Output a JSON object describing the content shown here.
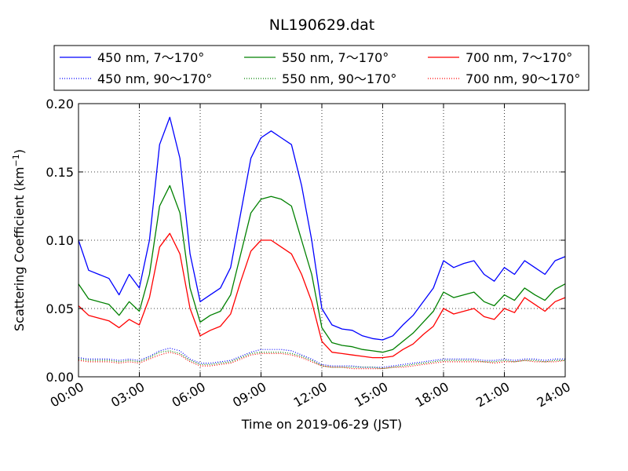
{
  "chart_data": {
    "type": "line",
    "title": "NL190629.dat",
    "xlabel": "Time on 2019-06-29 (JST)",
    "ylabel": "Scattering Coefficient (km",
    "ylabel_sup": "−1",
    "ylabel_close": ")",
    "xlim": [
      0,
      24
    ],
    "ylim": [
      0,
      0.2
    ],
    "grid": true,
    "legend_position": "top",
    "x_tick_labels": [
      "00:00",
      "03:00",
      "06:00",
      "09:00",
      "12:00",
      "15:00",
      "18:00",
      "21:00",
      "24:00"
    ],
    "x_tick_values": [
      0,
      3,
      6,
      9,
      12,
      15,
      18,
      21,
      24
    ],
    "y_tick_labels": [
      "0.00",
      "0.05",
      "0.10",
      "0.15",
      "0.20"
    ],
    "y_tick_values": [
      0,
      0.05,
      0.1,
      0.15,
      0.2
    ],
    "x": [
      0,
      0.5,
      1,
      1.5,
      2,
      2.5,
      3,
      3.5,
      4,
      4.5,
      5,
      5.5,
      6,
      6.5,
      7,
      7.5,
      8,
      8.5,
      9,
      9.5,
      10,
      10.5,
      11,
      11.5,
      12,
      12.5,
      13,
      13.5,
      14,
      14.5,
      15,
      15.5,
      16,
      16.5,
      17,
      17.5,
      18,
      18.5,
      19,
      19.5,
      20,
      20.5,
      21,
      21.5,
      22,
      22.5,
      23,
      23.5,
      24
    ],
    "series": [
      {
        "name": "450 nm, 7～170°",
        "color": "#0000ff",
        "style": "solid",
        "values": [
          0.1,
          0.078,
          0.075,
          0.072,
          0.06,
          0.075,
          0.065,
          0.1,
          0.17,
          0.19,
          0.16,
          0.09,
          0.055,
          0.06,
          0.065,
          0.08,
          0.12,
          0.16,
          0.175,
          0.18,
          0.175,
          0.17,
          0.14,
          0.1,
          0.05,
          0.038,
          0.035,
          0.034,
          0.03,
          0.028,
          0.027,
          0.03,
          0.038,
          0.045,
          0.055,
          0.065,
          0.085,
          0.08,
          0.083,
          0.085,
          0.075,
          0.07,
          0.08,
          0.075,
          0.085,
          0.08,
          0.075,
          0.085,
          0.088
        ]
      },
      {
        "name": "550 nm, 7～170°",
        "color": "#008000",
        "style": "solid",
        "values": [
          0.068,
          0.057,
          0.055,
          0.053,
          0.045,
          0.055,
          0.048,
          0.075,
          0.125,
          0.14,
          0.12,
          0.065,
          0.04,
          0.045,
          0.048,
          0.06,
          0.09,
          0.12,
          0.13,
          0.132,
          0.13,
          0.125,
          0.1,
          0.075,
          0.036,
          0.025,
          0.023,
          0.022,
          0.02,
          0.019,
          0.018,
          0.02,
          0.026,
          0.032,
          0.04,
          0.048,
          0.062,
          0.058,
          0.06,
          0.062,
          0.055,
          0.052,
          0.06,
          0.056,
          0.065,
          0.06,
          0.056,
          0.064,
          0.068
        ]
      },
      {
        "name": "700 nm, 7～170°",
        "color": "#ff0000",
        "style": "solid",
        "values": [
          0.052,
          0.045,
          0.043,
          0.041,
          0.036,
          0.042,
          0.038,
          0.058,
          0.095,
          0.105,
          0.09,
          0.05,
          0.03,
          0.034,
          0.037,
          0.046,
          0.07,
          0.092,
          0.1,
          0.1,
          0.095,
          0.09,
          0.075,
          0.055,
          0.026,
          0.018,
          0.017,
          0.016,
          0.015,
          0.014,
          0.014,
          0.015,
          0.02,
          0.024,
          0.031,
          0.037,
          0.05,
          0.046,
          0.048,
          0.05,
          0.044,
          0.042,
          0.05,
          0.047,
          0.058,
          0.053,
          0.048,
          0.055,
          0.058
        ]
      },
      {
        "name": "450 nm, 90～170°",
        "color": "#0000ff",
        "style": "dotted",
        "values": [
          0.014,
          0.013,
          0.013,
          0.013,
          0.012,
          0.013,
          0.012,
          0.015,
          0.019,
          0.021,
          0.019,
          0.013,
          0.01,
          0.01,
          0.011,
          0.012,
          0.015,
          0.018,
          0.02,
          0.02,
          0.02,
          0.019,
          0.016,
          0.013,
          0.009,
          0.008,
          0.008,
          0.008,
          0.007,
          0.007,
          0.007,
          0.008,
          0.009,
          0.01,
          0.011,
          0.012,
          0.013,
          0.013,
          0.013,
          0.013,
          0.012,
          0.012,
          0.013,
          0.012,
          0.013,
          0.013,
          0.012,
          0.013,
          0.013
        ]
      },
      {
        "name": "550 nm, 90～170°",
        "color": "#008000",
        "style": "dotted",
        "values": [
          0.013,
          0.012,
          0.012,
          0.012,
          0.011,
          0.012,
          0.011,
          0.014,
          0.018,
          0.019,
          0.017,
          0.012,
          0.009,
          0.009,
          0.01,
          0.011,
          0.014,
          0.017,
          0.018,
          0.018,
          0.018,
          0.017,
          0.015,
          0.012,
          0.008,
          0.007,
          0.007,
          0.007,
          0.007,
          0.007,
          0.006,
          0.007,
          0.008,
          0.009,
          0.01,
          0.011,
          0.012,
          0.012,
          0.012,
          0.012,
          0.011,
          0.011,
          0.012,
          0.011,
          0.012,
          0.012,
          0.011,
          0.012,
          0.012
        ]
      },
      {
        "name": "700 nm, 90～170°",
        "color": "#ff0000",
        "style": "dotted",
        "values": [
          0.012,
          0.011,
          0.011,
          0.011,
          0.01,
          0.011,
          0.01,
          0.013,
          0.016,
          0.018,
          0.016,
          0.011,
          0.008,
          0.008,
          0.009,
          0.01,
          0.013,
          0.016,
          0.017,
          0.017,
          0.017,
          0.016,
          0.014,
          0.011,
          0.008,
          0.007,
          0.007,
          0.006,
          0.006,
          0.006,
          0.006,
          0.007,
          0.007,
          0.008,
          0.009,
          0.01,
          0.011,
          0.011,
          0.011,
          0.011,
          0.011,
          0.01,
          0.011,
          0.011,
          0.012,
          0.011,
          0.011,
          0.011,
          0.012
        ]
      }
    ]
  }
}
